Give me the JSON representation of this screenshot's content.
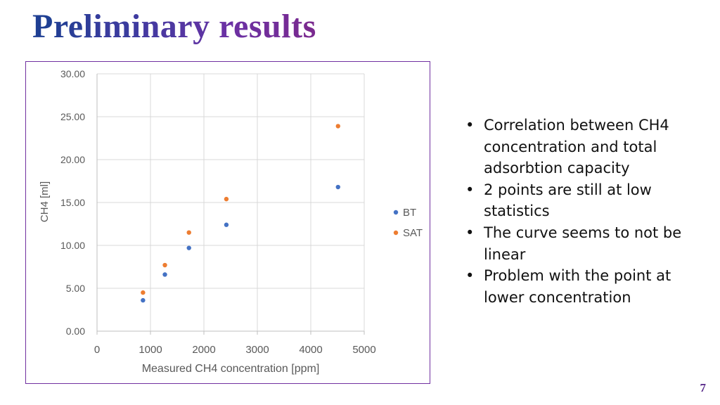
{
  "slide": {
    "title": "Preliminary results",
    "page_number": "7",
    "bullets": [
      "Correlation between CH4 concentration and total adsorbtion capacity",
      "2 points are still at low statistics",
      "The curve seems to not be linear",
      "Problem with the point at lower concentration"
    ]
  },
  "colors": {
    "title_gradient": [
      "#1f3f93",
      "#3f3ba0",
      "#6a31a4",
      "#7a2a8f"
    ],
    "frame": "#7030a0",
    "bt": "#4472c4",
    "sat": "#ed7d31",
    "grid": "#d9d9d9",
    "axis_text": "#595959"
  },
  "chart_data": {
    "type": "scatter",
    "title": "",
    "xlabel": "Measured CH4 concentration [ppm]",
    "ylabel": "CH4 [ml]",
    "xlim": [
      0,
      5000
    ],
    "ylim": [
      0,
      30
    ],
    "xticks": [
      0,
      1000,
      2000,
      3000,
      4000,
      5000
    ],
    "xtick_labels": [
      "0",
      "1000",
      "2000",
      "3000",
      "4000",
      "5000"
    ],
    "yticks": [
      0,
      5,
      10,
      15,
      20,
      25,
      30
    ],
    "ytick_labels": [
      "0.00",
      "5.00",
      "10.00",
      "15.00",
      "20.00",
      "25.00",
      "30.00"
    ],
    "grid": true,
    "legend_position": "right",
    "series": [
      {
        "name": "BT",
        "color": "#4472c4",
        "x": [
          860,
          1270,
          1720,
          2420,
          4510
        ],
        "y": [
          3.6,
          6.6,
          9.7,
          12.4,
          16.8
        ]
      },
      {
        "name": "SAT",
        "color": "#ed7d31",
        "x": [
          860,
          1270,
          1720,
          2420,
          4510
        ],
        "y": [
          4.5,
          7.7,
          11.5,
          15.4,
          23.9
        ]
      }
    ]
  }
}
